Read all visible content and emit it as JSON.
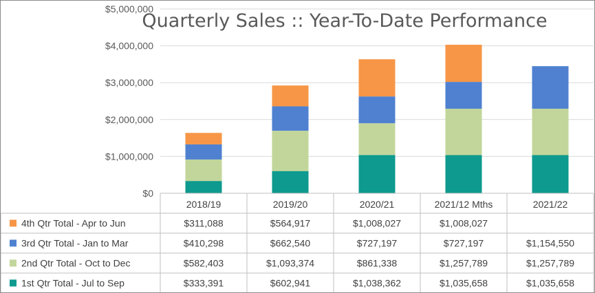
{
  "chart_data": {
    "type": "bar",
    "stacked": true,
    "title": "Quarterly Sales ::  Year-To-Date Performance",
    "xlabel": "",
    "ylabel": "",
    "ylim": [
      0,
      5000000
    ],
    "y_ticks": [
      "$0",
      "$1,000,000",
      "$2,000,000",
      "$3,000,000",
      "$4,000,000",
      "$5,000,000"
    ],
    "grid": true,
    "legend": "data-table-left",
    "categories": [
      "2018/19",
      "2019/20",
      "2020/21",
      "2021/12 Mths",
      "2021/22"
    ],
    "series": [
      {
        "name": "1st Qtr Total - Jul to Sep",
        "color": "#0e9a8e",
        "values": [
          333391,
          602941,
          1038362,
          1035658,
          1035658
        ],
        "labels": [
          "$333,391",
          "$602,941",
          "$1,038,362",
          "$1,035,658",
          "$1,035,658"
        ]
      },
      {
        "name": "2nd Qtr Total - Oct to Dec",
        "color": "#c2d69b",
        "values": [
          582403,
          1093374,
          861338,
          1257789,
          1257789
        ],
        "labels": [
          "$582,403",
          "$1,093,374",
          "$861,338",
          "$1,257,789",
          "$1,257,789"
        ]
      },
      {
        "name": "3rd Qtr Total - Jan to Mar",
        "color": "#4f81d0",
        "values": [
          410298,
          662540,
          727197,
          727197,
          1154550
        ],
        "labels": [
          "$410,298",
          "$662,540",
          "$727,197",
          "$727,197",
          "$1,154,550"
        ]
      },
      {
        "name": "4th Qtr Total - Apr to Jun",
        "color": "#f79646",
        "values": [
          311088,
          564917,
          1008027,
          1008027,
          null
        ],
        "labels": [
          "$311,088",
          "$564,917",
          "$1,008,027",
          "$1,008,027",
          ""
        ]
      }
    ],
    "table_row_order": [
      3,
      2,
      1,
      0
    ]
  }
}
